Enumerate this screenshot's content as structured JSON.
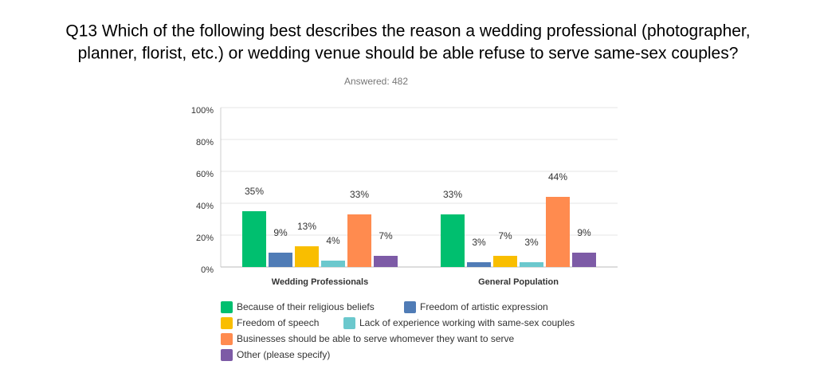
{
  "chart_data": {
    "type": "bar",
    "title": [
      "Q13 Which of the following best describes the reason a wedding professional (photographer,",
      "planner, florist, etc.) or wedding venue should be able refuse to serve same-sex couples?"
    ],
    "subtitle": "Answered: 482",
    "categories": [
      "Wedding Professionals",
      "General Population"
    ],
    "series": [
      {
        "name": "Because of their religious beliefs",
        "color": "#00bf6f",
        "values": [
          35,
          33
        ],
        "value_labels": [
          "35%",
          "33%"
        ]
      },
      {
        "name": "Freedom of artistic expression",
        "color": "#507cb6",
        "values": [
          9,
          3
        ],
        "value_labels": [
          "9%",
          "3%"
        ]
      },
      {
        "name": "Freedom of speech",
        "color": "#f9be00",
        "values": [
          13,
          7
        ],
        "value_labels": [
          "13%",
          "7%"
        ]
      },
      {
        "name": "Lack of experience working with same-sex couples",
        "color": "#6bc8cd",
        "values": [
          4,
          3
        ],
        "value_labels": [
          "4%",
          "3%"
        ]
      },
      {
        "name": "Businesses should be able to serve whomever they want to serve",
        "color": "#ff8b4f",
        "values": [
          33,
          44
        ],
        "value_labels": [
          "33%",
          "44%"
        ]
      },
      {
        "name": "Other (please specify)",
        "color": "#7d5ba6",
        "values": [
          7,
          9
        ],
        "value_labels": [
          "7%",
          "9%"
        ]
      }
    ],
    "ylim": [
      0,
      100
    ],
    "yticks": [
      {
        "value": 0,
        "label": "0%"
      },
      {
        "value": 20,
        "label": "20%"
      },
      {
        "value": 40,
        "label": "40%"
      },
      {
        "value": 60,
        "label": "60%"
      },
      {
        "value": 80,
        "label": "80%"
      },
      {
        "value": 100,
        "label": "100%"
      }
    ],
    "grid": true
  }
}
